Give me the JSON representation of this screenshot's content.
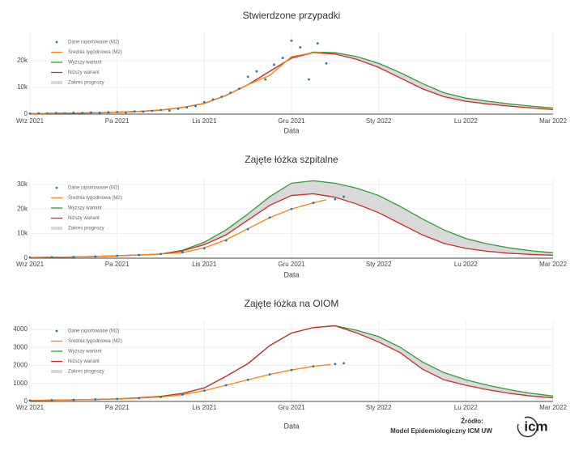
{
  "chart_data": [
    {
      "type": "line",
      "title": "Stwierdzone przypadki",
      "xlabel": "Data",
      "grid": true,
      "legend": "top-left",
      "xlim": [
        0,
        6
      ],
      "ylim": [
        0,
        30600
      ],
      "xticks": [
        {
          "value": 0,
          "label": "Wrz 2021"
        },
        {
          "value": 1,
          "label": "Pa 2021"
        },
        {
          "value": 2,
          "label": "Lis 2021"
        },
        {
          "value": 3,
          "label": "Gru 2021"
        },
        {
          "value": 4,
          "label": "Sty 2022"
        },
        {
          "value": 5,
          "label": "Lu 2022"
        },
        {
          "value": 6,
          "label": "Mar 2022"
        }
      ],
      "yticks": [
        0,
        {
          "value": 10000,
          "label": "10k"
        },
        {
          "value": 20000,
          "label": "20k"
        }
      ],
      "band": {
        "name": "Zakres prognozy",
        "color": "#d9d9d9"
      },
      "series": [
        {
          "name": "Dane raportowane (M2)",
          "color": "#1f77b4",
          "mode": "markers",
          "x": [
            0,
            0.1,
            0.2,
            0.3,
            0.4,
            0.5,
            0.6,
            0.7,
            0.8,
            0.9,
            1,
            1.1,
            1.2,
            1.3,
            1.4,
            1.5,
            1.6,
            1.7,
            1.8,
            1.9,
            2,
            2.1,
            2.2,
            2.3,
            2.4,
            2.5,
            2.6,
            2.7,
            2.8,
            2.9,
            3,
            3.1,
            3.2,
            3.3,
            3.4
          ],
          "values": [
            200,
            300,
            250,
            400,
            300,
            500,
            400,
            600,
            500,
            700,
            800,
            600,
            1000,
            900,
            1200,
            1500,
            1300,
            2000,
            2500,
            3000,
            4500,
            5500,
            6500,
            8000,
            9500,
            14000,
            16000,
            13000,
            18500,
            21000,
            27500,
            25000,
            13000,
            26500,
            19000
          ]
        },
        {
          "name": "Średnia tygodniowa (M2)",
          "color": "#ff7f0e",
          "mode": "lines",
          "x": [
            0,
            0.25,
            0.5,
            0.75,
            1,
            1.25,
            1.5,
            1.75,
            2,
            2.25,
            2.5,
            2.75,
            3,
            3.25,
            3.35
          ],
          "values": [
            200,
            300,
            400,
            500,
            700,
            1000,
            1500,
            2500,
            4000,
            7000,
            11000,
            14500,
            21500,
            23000,
            23200
          ]
        },
        {
          "name": "Wyższy wariant",
          "color": "#2ca02c",
          "mode": "lines",
          "x": [
            0,
            0.25,
            0.5,
            0.75,
            1,
            1.25,
            1.5,
            1.75,
            2,
            2.25,
            2.5,
            2.75,
            3,
            3.25,
            3.5,
            3.75,
            4,
            4.25,
            4.5,
            4.75,
            5,
            5.25,
            5.5,
            5.75,
            6
          ],
          "values": [
            200,
            300,
            400,
            500,
            700,
            1000,
            1500,
            2500,
            4000,
            7000,
            11000,
            16000,
            21000,
            23200,
            23000,
            21500,
            19000,
            15500,
            11500,
            8000,
            6000,
            4800,
            3800,
            3000,
            2300
          ]
        },
        {
          "name": "Niższy wariant",
          "color": "#d62728",
          "mode": "lines",
          "x": [
            0,
            0.25,
            0.5,
            0.75,
            1,
            1.25,
            1.5,
            1.75,
            2,
            2.25,
            2.5,
            2.75,
            3,
            3.25,
            3.5,
            3.75,
            4,
            4.25,
            4.5,
            4.75,
            5,
            5.25,
            5.5,
            5.75,
            6
          ],
          "values": [
            200,
            300,
            400,
            500,
            700,
            1000,
            1500,
            2500,
            4000,
            7000,
            11000,
            16000,
            21000,
            23000,
            22500,
            20500,
            17500,
            13500,
            9500,
            6500,
            4800,
            3800,
            3000,
            2300,
            1700
          ]
        }
      ]
    },
    {
      "type": "line",
      "title": "Zajęte łóżka szpitalne",
      "xlabel": "Data",
      "grid": true,
      "legend": "top-left",
      "xlim": [
        0,
        6
      ],
      "ylim": [
        0,
        32600
      ],
      "xticks": [
        {
          "value": 0,
          "label": "Wrz 2021"
        },
        {
          "value": 1,
          "label": "Pa 2021"
        },
        {
          "value": 2,
          "label": "Lis 2021"
        },
        {
          "value": 3,
          "label": "Gru 2021"
        },
        {
          "value": 4,
          "label": "Sty 2022"
        },
        {
          "value": 5,
          "label": "Lu 2022"
        },
        {
          "value": 6,
          "label": "Mar 2022"
        }
      ],
      "yticks": [
        0,
        {
          "value": 10000,
          "label": "10k"
        },
        {
          "value": 20000,
          "label": "20k"
        },
        {
          "value": 30000,
          "label": "30k"
        }
      ],
      "band": {
        "name": "Zakres prognozy",
        "color": "#d9d9d9"
      },
      "series": [
        {
          "name": "Dane raportowane (M2)",
          "color": "#1f77b4",
          "mode": "markers",
          "x": [
            0,
            0.25,
            0.5,
            0.75,
            1,
            1.25,
            1.5,
            1.75,
            2,
            2.25,
            2.5,
            2.75,
            3,
            3.25,
            3.5,
            3.6
          ],
          "values": [
            300,
            400,
            500,
            700,
            1000,
            1300,
            1700,
            2400,
            4000,
            7200,
            11800,
            16500,
            20000,
            22500,
            24000,
            25000
          ]
        },
        {
          "name": "Średnia tygodniowa (M2)",
          "color": "#ff7f0e",
          "mode": "lines",
          "x": [
            0,
            0.25,
            0.5,
            0.75,
            1,
            1.25,
            1.5,
            1.75,
            2,
            2.25,
            2.5,
            2.75,
            3,
            3.25,
            3.4
          ],
          "values": [
            300,
            400,
            500,
            700,
            1000,
            1300,
            1700,
            2300,
            4200,
            7500,
            12000,
            16500,
            20000,
            22500,
            23800
          ]
        },
        {
          "name": "Wyższy wariant",
          "color": "#2ca02c",
          "mode": "lines",
          "x": [
            0,
            0.25,
            0.5,
            0.75,
            1,
            1.25,
            1.5,
            1.75,
            2,
            2.25,
            2.5,
            2.75,
            3,
            3.25,
            3.5,
            3.75,
            4,
            4.25,
            4.5,
            4.75,
            5,
            5.25,
            5.5,
            5.75,
            6
          ],
          "values": [
            300,
            400,
            500,
            700,
            1000,
            1300,
            1700,
            3200,
            6500,
            11500,
            18000,
            25000,
            30500,
            31500,
            30500,
            28500,
            25500,
            21000,
            16000,
            11500,
            8000,
            5800,
            4200,
            3000,
            2200
          ]
        },
        {
          "name": "Niższy wariant",
          "color": "#d62728",
          "mode": "lines",
          "x": [
            0,
            0.25,
            0.5,
            0.75,
            1,
            1.25,
            1.5,
            1.75,
            2,
            2.25,
            2.5,
            2.75,
            3,
            3.25,
            3.5,
            3.75,
            4,
            4.25,
            4.5,
            4.75,
            5,
            5.25,
            5.5,
            5.75,
            6
          ],
          "values": [
            300,
            400,
            500,
            700,
            1000,
            1300,
            1700,
            3000,
            5500,
            9500,
            15500,
            21500,
            25500,
            26200,
            24800,
            22000,
            18500,
            14000,
            9500,
            6000,
            4000,
            2800,
            2000,
            1500,
            1200
          ]
        }
      ]
    },
    {
      "type": "line",
      "title": "Zajęte łóżka na OIOM",
      "xlabel": "Data",
      "grid": true,
      "legend": "top-left",
      "xlim": [
        0,
        6
      ],
      "ylim": [
        0,
        4450
      ],
      "xticks": [
        {
          "value": 0,
          "label": "Wrz 2021"
        },
        {
          "value": 1,
          "label": "Pa 2021"
        },
        {
          "value": 2,
          "label": "Lis 2021"
        },
        {
          "value": 3,
          "label": "Gru 2021"
        },
        {
          "value": 4,
          "label": "Sty 2022"
        },
        {
          "value": 5,
          "label": "Lu 2022"
        },
        {
          "value": 6,
          "label": "Mar 2022"
        }
      ],
      "yticks": [
        0,
        1000,
        2000,
        3000,
        4000
      ],
      "band": {
        "name": "Zakres prognozy",
        "color": "#d9d9d9"
      },
      "series": [
        {
          "name": "Dane raportowane (M2)",
          "color": "#1f77b4",
          "mode": "markers",
          "x": [
            0,
            0.25,
            0.5,
            0.75,
            1,
            1.25,
            1.5,
            1.75,
            2,
            2.25,
            2.5,
            2.75,
            3,
            3.25,
            3.5,
            3.6
          ],
          "values": [
            50,
            70,
            90,
            110,
            140,
            180,
            250,
            380,
            600,
            900,
            1200,
            1500,
            1750,
            1950,
            2080,
            2120
          ]
        },
        {
          "name": "Średnia tygodniowa (M2)",
          "color": "#ff7f0e",
          "mode": "lines",
          "x": [
            0,
            0.25,
            0.5,
            0.75,
            1,
            1.25,
            1.5,
            1.75,
            2,
            2.25,
            2.5,
            2.75,
            3,
            3.25,
            3.45
          ],
          "values": [
            50,
            70,
            90,
            110,
            140,
            180,
            250,
            380,
            600,
            900,
            1200,
            1500,
            1750,
            1950,
            2050
          ]
        },
        {
          "name": "Wyższy wariant",
          "color": "#2ca02c",
          "mode": "lines",
          "x": [
            0,
            0.25,
            0.5,
            0.75,
            1,
            1.25,
            1.5,
            1.75,
            2,
            2.25,
            2.5,
            2.75,
            3,
            3.25,
            3.5,
            3.75,
            4,
            4.25,
            4.5,
            4.75,
            5,
            5.25,
            5.5,
            5.75,
            6
          ],
          "values": [
            50,
            70,
            90,
            110,
            140,
            200,
            280,
            450,
            750,
            1400,
            2100,
            3100,
            3800,
            4100,
            4200,
            3950,
            3600,
            3000,
            2200,
            1600,
            1200,
            900,
            650,
            450,
            300
          ]
        },
        {
          "name": "Niższy wariant",
          "color": "#d62728",
          "mode": "lines",
          "x": [
            0,
            0.25,
            0.5,
            0.75,
            1,
            1.25,
            1.5,
            1.75,
            2,
            2.25,
            2.5,
            2.75,
            3,
            3.25,
            3.5,
            3.75,
            4,
            4.25,
            4.5,
            4.75,
            5,
            5.25,
            5.5,
            5.75,
            6
          ],
          "values": [
            50,
            70,
            90,
            110,
            140,
            200,
            280,
            450,
            750,
            1400,
            2100,
            3100,
            3800,
            4100,
            4200,
            3800,
            3300,
            2700,
            1800,
            1200,
            900,
            650,
            450,
            300,
            200
          ]
        }
      ]
    }
  ],
  "source": {
    "label": "Źródło:",
    "text": "Model Epidemiologiczny ICM UW",
    "logo": "icm"
  }
}
